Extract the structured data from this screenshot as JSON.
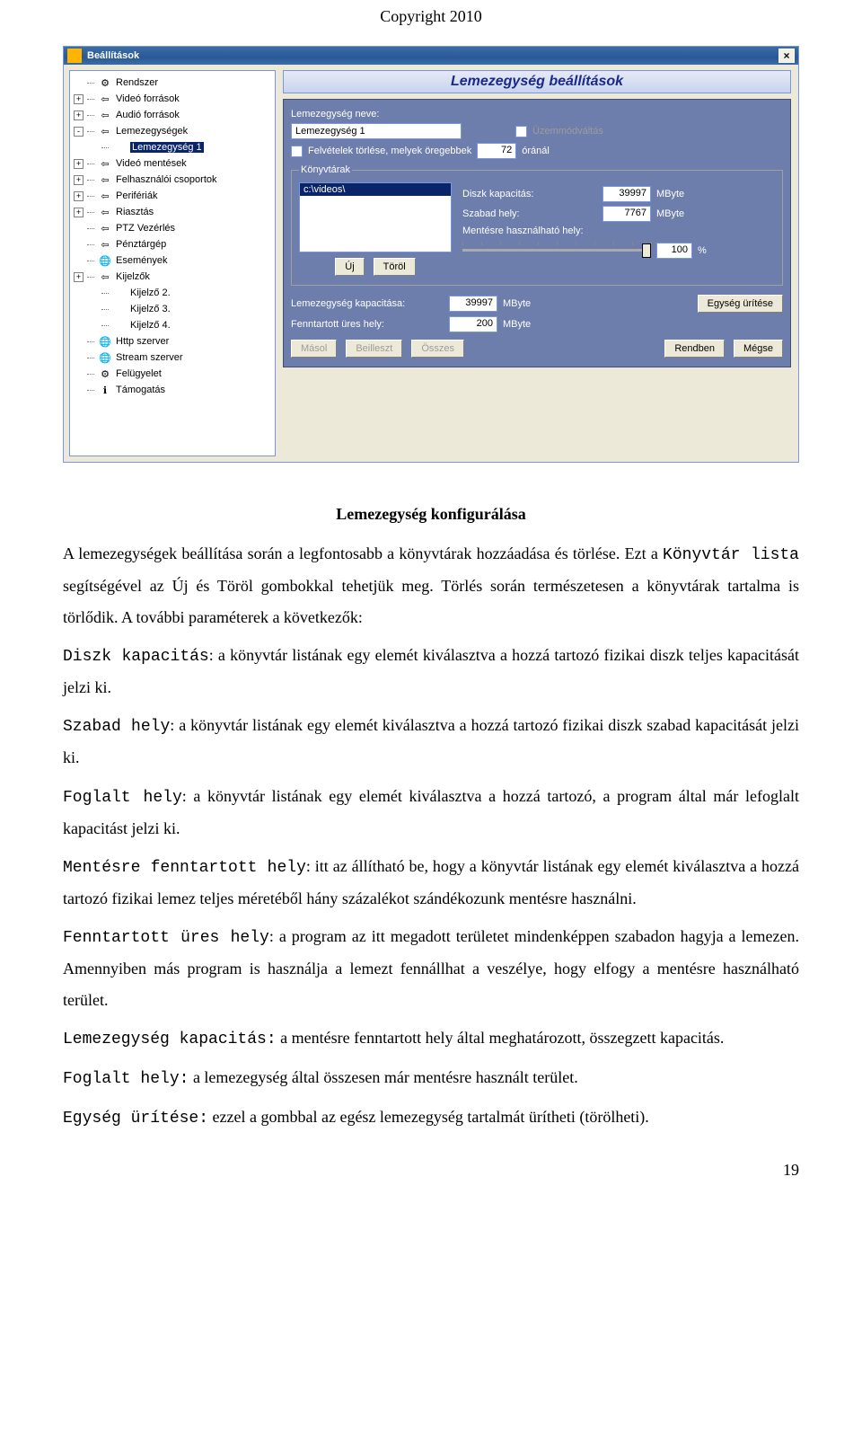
{
  "copyright": "Copyright 2010",
  "window": {
    "title": "Beállítások",
    "close": "×",
    "tree": [
      {
        "exp": "",
        "icon": "gear-icon",
        "label": "Rendszer",
        "indent": 0
      },
      {
        "exp": "+",
        "icon": "arrow-left-icon",
        "label": "Videó források",
        "indent": 0
      },
      {
        "exp": "+",
        "icon": "arrow-left-icon",
        "label": "Audió források",
        "indent": 0
      },
      {
        "exp": "-",
        "icon": "arrow-left-icon",
        "label": "Lemezegységek",
        "indent": 0
      },
      {
        "exp": "",
        "icon": "blank-icon",
        "label": "Lemezegység 1",
        "indent": 1,
        "selected": true
      },
      {
        "exp": "+",
        "icon": "arrow-left-icon",
        "label": "Videó mentések",
        "indent": 0
      },
      {
        "exp": "+",
        "icon": "arrow-left-icon",
        "label": "Felhasználói csoportok",
        "indent": 0
      },
      {
        "exp": "+",
        "icon": "arrow-left-icon",
        "label": "Perifériák",
        "indent": 0
      },
      {
        "exp": "+",
        "icon": "arrow-left-icon",
        "label": "Riasztás",
        "indent": 0
      },
      {
        "exp": "",
        "icon": "arrow-left-icon",
        "label": "PTZ Vezérlés",
        "indent": 0
      },
      {
        "exp": "",
        "icon": "arrow-left-icon",
        "label": "Pénztárgép",
        "indent": 0
      },
      {
        "exp": "",
        "icon": "globe-icon",
        "label": "Események",
        "indent": 0
      },
      {
        "exp": "+",
        "icon": "arrow-left-icon",
        "label": "Kijelzők",
        "indent": 0
      },
      {
        "exp": "",
        "icon": "blank-icon",
        "label": "Kijelző 2.",
        "indent": 1
      },
      {
        "exp": "",
        "icon": "blank-icon",
        "label": "Kijelző 3.",
        "indent": 1
      },
      {
        "exp": "",
        "icon": "blank-icon",
        "label": "Kijelző 4.",
        "indent": 1
      },
      {
        "exp": "",
        "icon": "globe-icon",
        "label": "Http szerver",
        "indent": 0
      },
      {
        "exp": "",
        "icon": "globe-icon",
        "label": "Stream szerver",
        "indent": 0
      },
      {
        "exp": "",
        "icon": "gear-icon",
        "label": "Felügyelet",
        "indent": 0
      },
      {
        "exp": "",
        "icon": "info-icon",
        "label": "Támogatás",
        "indent": 0
      }
    ],
    "panel_title": "Lemezegység beállítások",
    "labels": {
      "drive_name": "Lemezegység neve:",
      "name_value": "Lemezegység 1",
      "mode_switch": "Üzemmódváltás",
      "del_recordings": "Felvételek törlése, melyek öregebbek",
      "hours_value": "72",
      "hours_suffix": "óránál",
      "directories": "Könyvtárak",
      "dir_selected": "c:\\videos\\",
      "disk_cap": "Diszk kapacitás:",
      "disk_cap_val": "39997",
      "free_space": "Szabad hely:",
      "free_space_val": "7767",
      "usable": "Mentésre használható hely:",
      "mbyte": "MByte",
      "percent_val": "100",
      "percent": "%",
      "new": "Új",
      "del": "Töröl",
      "unit_cap": "Lemezegység kapacitása:",
      "unit_cap_val": "39997",
      "reserved": "Fenntartott üres hely:",
      "reserved_val": "200",
      "drain": "Egység ürítése"
    },
    "buttons": {
      "copy": "Másol",
      "paste": "Beilleszt",
      "all": "Összes",
      "ok": "Rendben",
      "cancel": "Mégse"
    },
    "slider": {
      "value_pct": 100,
      "tick_count": 11
    },
    "colors": {
      "titlebar_bg": "#2b5797",
      "panel_bg": "#6d7dac",
      "dialog_bg": "#ece9d8",
      "selection_bg": "#0a246a",
      "border": "#7a96df"
    }
  },
  "doc": {
    "heading": "Lemezegység konfigurálása",
    "p1_a": "A lemezegységek beállítása során a legfontosabb a könyvtárak hozzáadása és törlése. Ezt a ",
    "p1_b": "Könyvtár lista",
    "p1_c": " segítségével az Új és Töröl gombokkal tehetjük meg. Törlés során természetesen a könyvtárak tartalma is törlődik. A további paraméterek a következők:",
    "p2_a": "Diszk kapacitás",
    "p2_b": ": a könyvtár listának egy elemét kiválasztva a hozzá tartozó fizikai diszk teljes kapacitását jelzi ki.",
    "p3_a": "Szabad hely",
    "p3_b": ": a könyvtár listának egy elemét kiválasztva a hozzá tartozó fizikai diszk szabad kapacitását jelzi ki.",
    "p4_a": "Foglalt hely",
    "p4_b": ": a könyvtár listának egy elemét kiválasztva a hozzá tartozó, a program által már lefoglalt kapacitást jelzi ki.",
    "p5_a": "Mentésre fenntartott hely",
    "p5_b": ": itt az állítható be, hogy a könyvtár listának egy elemét kiválasztva a hozzá tartozó fizikai lemez teljes méretéből hány százalékot szándékozunk mentésre használni.",
    "p6_a": "Fenntartott üres hely",
    "p6_b": ": a program az itt megadott területet mindenképpen szabadon hagyja a lemezen. Amennyiben más program is használja a lemezt fennállhat a veszélye, hogy elfogy a mentésre használható terület.",
    "p7_a": "Lemezegység kapacitás:",
    "p7_b": " a mentésre fenntartott hely által meghatározott, összegzett kapacitás.",
    "p8_a": "Foglalt hely:",
    "p8_b": " a lemezegység által összesen már mentésre használt terület.",
    "p9_a": "Egység ürítése:",
    "p9_b": " ezzel a gombbal az egész lemezegység tartalmát ürítheti (törölheti).",
    "pagenum": "19"
  },
  "icons": {
    "gear": "⚙",
    "arrow": "⇦",
    "globe": "🌐",
    "info": "ℹ",
    "blank": ""
  }
}
